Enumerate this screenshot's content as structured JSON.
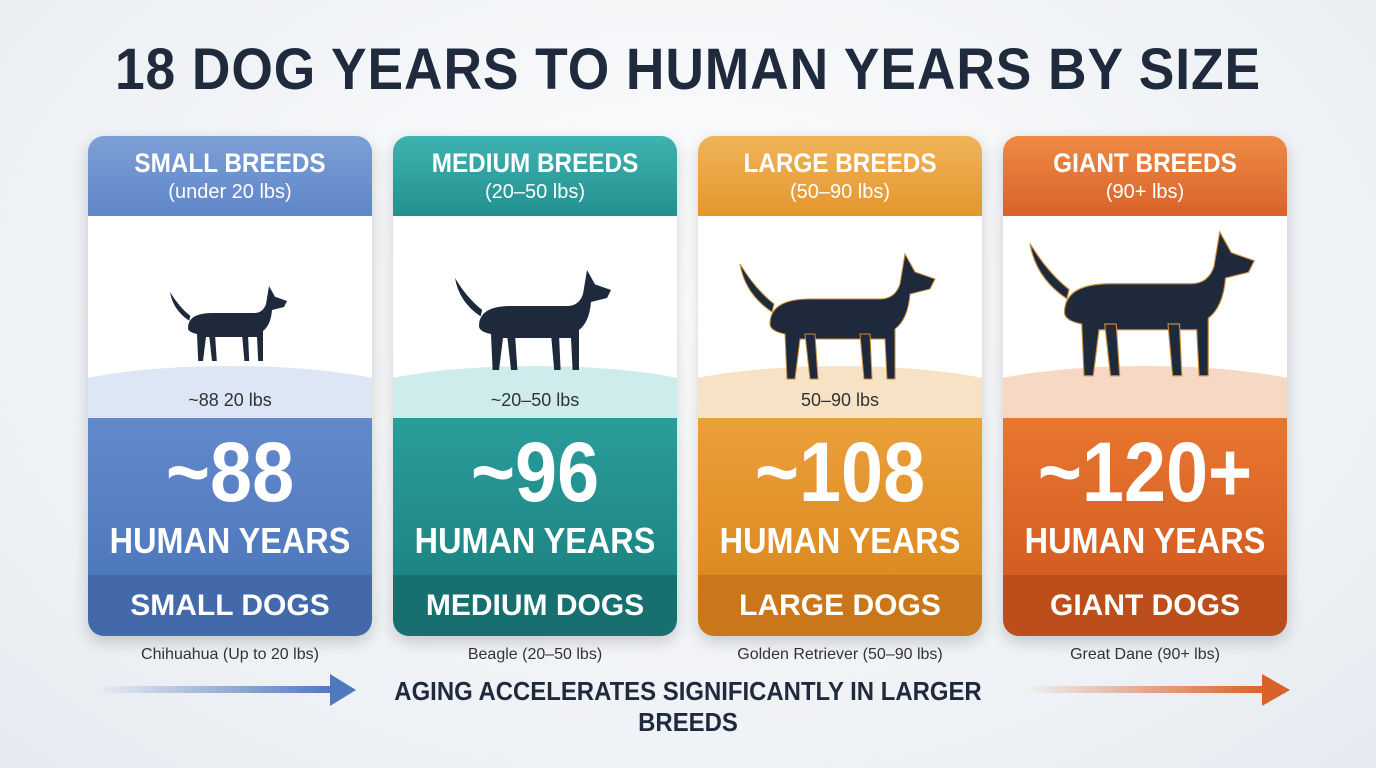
{
  "title": "18 DOG YEARS TO HUMAN YEARS BY SIZE",
  "cards": [
    {
      "header": "SMALL BREEDS",
      "subheader": "(under 20 lbs)",
      "weight": "~88 20 lbs",
      "age": "~88",
      "unit": "HUMAN YEARS",
      "footer": "SMALL DOGS",
      "caption": "Chihuahua (Up to 20 lbs)"
    },
    {
      "header": "MEDIUM BREEDS",
      "subheader": "(20–50 lbs)",
      "weight": "~20–50 lbs",
      "age": "~96",
      "unit": "HUMAN YEARS",
      "footer": "MEDIUM DOGS",
      "caption": "Beagle (20–50 lbs)"
    },
    {
      "header": "LARGE BREEDS",
      "subheader": "(50–90 lbs)",
      "weight": "50–90 lbs",
      "age": "~108",
      "unit": "HUMAN YEARS",
      "footer": "LARGE DOGS",
      "caption": "Golden Retriever (50–90 lbs)"
    },
    {
      "header": "GIANT BREEDS",
      "subheader": "(90+ lbs)",
      "weight": "",
      "age": "~120+",
      "unit": "HUMAN YEARS",
      "footer": "GIANT DOGS",
      "caption": "Great Dane (90+ lbs)"
    }
  ],
  "footer_note": "AGING ACCELERATES SIGNIFICANTLY IN LARGER BREEDS"
}
